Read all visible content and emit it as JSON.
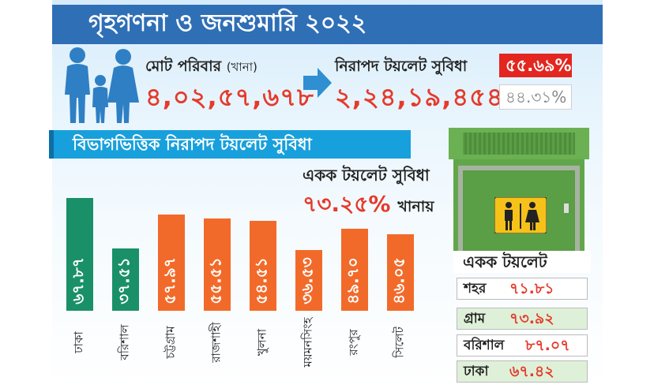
{
  "title": "গৃহগণনা ও জনশুমারি ২০২২",
  "total_households_label": "মোট পরিবার",
  "total_households_sub": "(খানা)",
  "total_households_value": "৪,০২,৫৭,৬৭৮",
  "safe_toilet_label": "নিরাপদ টয়লেট সুবিধা",
  "safe_toilet_value": "২,২৪,১৯,৪৫৪",
  "safe_pct": "৫৫.৬৯%",
  "other_pct": "৪৪.৩১%",
  "ribbon_label": "বিভাগভিত্তিক নিরাপদ টয়লেট সুবিধা",
  "single_toilet_heading": "একক টয়লেট সুবিধা",
  "single_toilet_pct": "৭৩.২৫%",
  "single_toilet_suffix": "খানায়",
  "single_toilet_box_label": "একক টয়লেট",
  "single_toilet_rows": [
    {
      "label": "শহর",
      "value": "৭১.৮১"
    },
    {
      "label": "গ্রাম",
      "value": "৭৩.৯২"
    },
    {
      "label": "বরিশাল",
      "value": "৮৭.০৭"
    },
    {
      "label": "ঢাকা",
      "value": "৬৭.৪২"
    }
  ],
  "colors": {
    "title_band": "#2f6fb6",
    "ribbon": "#18a0dc",
    "bar_green": "#1a9068",
    "bar_orange": "#f26a2a",
    "accent_red": "#e53a2b",
    "pct_box_red": "#e3261f",
    "toilet_green": "#5a9e45",
    "row_light_green": "#dff0d8"
  },
  "icons": [
    "family-icon",
    "arrow-right-icon",
    "toilet-booth-icon",
    "restroom-sign-icon"
  ],
  "chart_data": {
    "type": "bar",
    "categories": [
      "ঢাকা",
      "বরিশাল",
      "চট্টগ্রাম",
      "রাজশাহী",
      "খুলনা",
      "ময়মনসিংহ",
      "রংপুর",
      "সিলেট"
    ],
    "values": [
      67.87,
      37.51,
      57.97,
      55.51,
      54.51,
      36.53,
      49.7,
      46.05
    ],
    "value_labels": [
      "৬৭.৮৭",
      "৩৭.৫১",
      "৫৭.৯৭",
      "৫৫.৫১",
      "৫৪.৫১",
      "৩৬.৫৩",
      "৪৯.৭০",
      "৪৬.০৫"
    ],
    "bar_colors": [
      "#1a9068",
      "#1a9068",
      "#f26a2a",
      "#f26a2a",
      "#f26a2a",
      "#f26a2a",
      "#f26a2a",
      "#f26a2a"
    ],
    "title": "বিভাগভিত্তিক নিরাপদ টয়লেট সুবিধা",
    "xlabel": "",
    "ylabel": "",
    "ylim": [
      0,
      70
    ],
    "grid": false,
    "legend": "none"
  }
}
